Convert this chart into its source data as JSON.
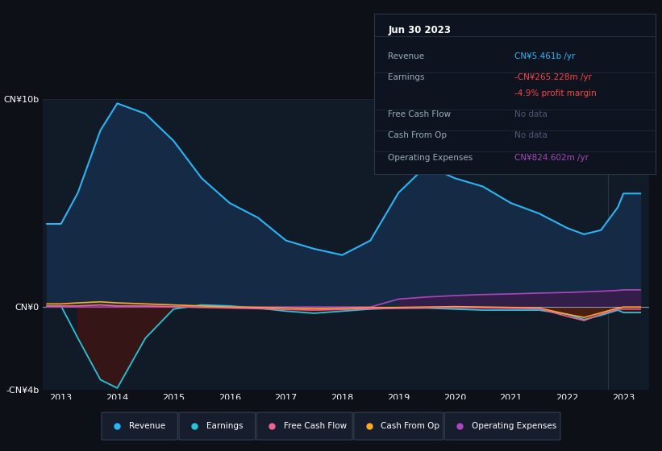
{
  "background_color": "#0d1117",
  "plot_bg_color": "#111a27",
  "years": [
    2012.75,
    2013.0,
    2013.3,
    2013.7,
    2014.0,
    2014.5,
    2015.0,
    2015.5,
    2016.0,
    2016.5,
    2017.0,
    2017.5,
    2018.0,
    2018.5,
    2019.0,
    2019.5,
    2020.0,
    2020.5,
    2021.0,
    2021.5,
    2022.0,
    2022.3,
    2022.6,
    2022.9,
    2023.0,
    2023.3
  ],
  "revenue": [
    4.0,
    4.0,
    5.5,
    8.5,
    9.8,
    9.3,
    8.0,
    6.2,
    5.0,
    4.3,
    3.2,
    2.8,
    2.5,
    3.2,
    5.5,
    6.8,
    6.2,
    5.8,
    5.0,
    4.5,
    3.8,
    3.5,
    3.7,
    4.8,
    5.461,
    5.461
  ],
  "earnings": [
    0.05,
    0.05,
    -1.5,
    -3.5,
    -3.9,
    -1.5,
    -0.1,
    0.1,
    0.05,
    -0.05,
    -0.2,
    -0.3,
    -0.2,
    -0.1,
    -0.05,
    -0.05,
    -0.1,
    -0.15,
    -0.15,
    -0.15,
    -0.35,
    -0.6,
    -0.4,
    -0.15,
    -0.265,
    -0.265
  ],
  "free_cash_flow": [
    0.05,
    0.05,
    0.05,
    0.1,
    0.05,
    0.05,
    0.02,
    -0.02,
    -0.05,
    -0.08,
    -0.12,
    -0.15,
    -0.12,
    -0.08,
    -0.06,
    -0.04,
    -0.02,
    -0.04,
    -0.06,
    -0.08,
    -0.45,
    -0.65,
    -0.35,
    -0.1,
    -0.1,
    -0.1
  ],
  "cash_from_op": [
    0.15,
    0.15,
    0.2,
    0.25,
    0.2,
    0.15,
    0.1,
    0.05,
    0.0,
    -0.02,
    -0.05,
    -0.08,
    -0.06,
    -0.03,
    -0.02,
    0.0,
    0.02,
    0.0,
    -0.02,
    -0.05,
    -0.35,
    -0.5,
    -0.28,
    -0.05,
    0.0,
    0.0
  ],
  "op_expenses": [
    0.0,
    0.0,
    0.0,
    0.0,
    0.0,
    0.0,
    0.0,
    0.0,
    0.0,
    0.0,
    0.0,
    0.0,
    0.0,
    0.0,
    0.38,
    0.48,
    0.55,
    0.6,
    0.63,
    0.67,
    0.7,
    0.73,
    0.76,
    0.8,
    0.8246,
    0.8246
  ],
  "revenue_color": "#29b6f6",
  "earnings_color": "#26c6da",
  "free_cash_flow_color": "#f06292",
  "cash_from_op_color": "#ffa726",
  "op_expenses_color": "#ab47bc",
  "revenue_fill": "#152a45",
  "earnings_fill_neg": "#3d1515",
  "op_expenses_fill": "#3d1a4a",
  "ylim_top": 10,
  "ylim_bottom": -4,
  "yticks": [
    10,
    0,
    -4
  ],
  "ytick_labels": [
    "CN¥10b",
    "CN¥0",
    "-CN¥4b"
  ],
  "xticks": [
    2013,
    2014,
    2015,
    2016,
    2017,
    2018,
    2019,
    2020,
    2021,
    2022,
    2023
  ],
  "grid_color": "#1e2a3a",
  "legend_items": [
    "Revenue",
    "Earnings",
    "Free Cash Flow",
    "Cash From Op",
    "Operating Expenses"
  ],
  "legend_colors": [
    "#29b6f6",
    "#26c6da",
    "#f06292",
    "#ffa726",
    "#ab47bc"
  ],
  "info_box_title": "Jun 30 2023",
  "info_rows": [
    {
      "label": "Revenue",
      "value": "CN¥5.461b /yr",
      "value_color": "#29b6f6",
      "separator": true
    },
    {
      "label": "Earnings",
      "value": "-CN¥265.228m /yr",
      "value_color": "#ff4444",
      "separator": false
    },
    {
      "label": "",
      "value": "-4.9% profit margin",
      "value_color": "#ff4444",
      "separator": true
    },
    {
      "label": "Free Cash Flow",
      "value": "No data",
      "value_color": "#555577",
      "separator": true
    },
    {
      "label": "Cash From Op",
      "value": "No data",
      "value_color": "#555577",
      "separator": true
    },
    {
      "label": "Operating Expenses",
      "value": "CN¥824.602m /yr",
      "value_color": "#ab47bc",
      "separator": true
    }
  ]
}
